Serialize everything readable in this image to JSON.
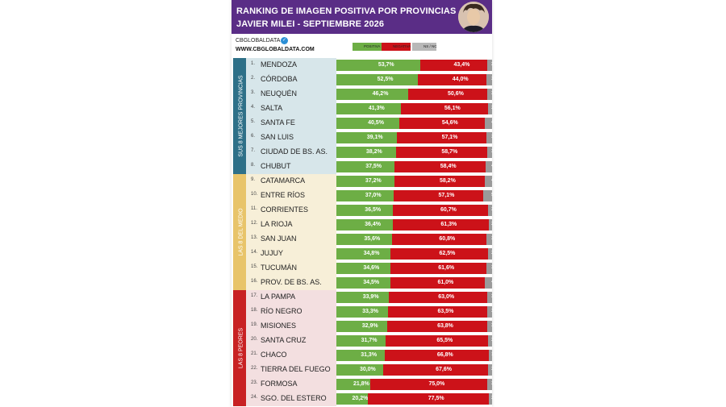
{
  "header": {
    "title_line1": "RANKING DE IMAGEN POSITIVA POR PROVINCIAS",
    "title_line2": "JAVIER MILEI - SEPTIEMBRE 2026"
  },
  "brand": {
    "handle": "CBGLOBALDATA",
    "site": "WWW.CBGLOBALDATA.COM"
  },
  "colors": {
    "header": "#5a2d86",
    "positiva": "#6dae45",
    "negativa": "#cc1219",
    "ns_nc": "#9a9a9a",
    "group_top": "#2e7088",
    "group_mid": "#e8c46a",
    "group_bottom": "#c82123"
  },
  "legend": [
    "POSITIVA",
    "NEGATIVA",
    "NS / NC"
  ],
  "groups": [
    {
      "label": "SUS 8 MEJORES PROVINCIAS",
      "start": 0,
      "count": 8,
      "color": "#2e7088",
      "bg": "#d7e6ea"
    },
    {
      "label": "LAS 8 DEL MEDIO",
      "start": 8,
      "count": 8,
      "color": "#e8c46a",
      "bg": "#f7efd8"
    },
    {
      "label": "LAS 8 PEORES",
      "start": 16,
      "count": 8,
      "color": "#c82123",
      "bg": "#f3dfe0"
    }
  ],
  "chart_data": {
    "type": "bar",
    "orientation": "horizontal",
    "stacked": true,
    "title": "RANKING DE IMAGEN POSITIVA POR PROVINCIAS",
    "subtitle": "JAVIER MILEI - SEPTIEMBRE 2026",
    "categories": [
      "MENDOZA",
      "CÓRDOBA",
      "NEUQUÉN",
      "SALTA",
      "SANTA FE",
      "SAN LUIS",
      "CIUDAD DE BS. AS.",
      "CHUBUT",
      "CATAMARCA",
      "ENTRE RÍOS",
      "CORRIENTES",
      "LA RIOJA",
      "SAN JUAN",
      "JUJUY",
      "TUCUMÁN",
      "PROV. DE BS. AS.",
      "LA PAMPA",
      "RÍO NEGRO",
      "MISIONES",
      "SANTA CRUZ",
      "CHACO",
      "TIERRA DEL FUEGO",
      "FORMOSA",
      "SGO. DEL ESTERO"
    ],
    "ranks": [
      "1.",
      "2.",
      "3.",
      "4.",
      "5.",
      "6.",
      "7.",
      "8.",
      "9.",
      "10.",
      "11.",
      "12.",
      "13.",
      "14.",
      "15.",
      "16.",
      "17.",
      "18.",
      "19.",
      "20.",
      "21.",
      "22.",
      "23.",
      "24."
    ],
    "series": [
      {
        "name": "POSITIVA",
        "color": "#6dae45",
        "values": [
          53.7,
          52.5,
          46.2,
          41.3,
          40.5,
          39.1,
          38.2,
          37.5,
          37.2,
          37.0,
          36.5,
          36.4,
          35.6,
          34.8,
          34.6,
          34.5,
          33.9,
          33.3,
          32.9,
          31.7,
          31.3,
          30.0,
          21.8,
          20.2
        ],
        "labels": [
          "53,7%",
          "52,5%",
          "46,2%",
          "41,3%",
          "40,5%",
          "39,1%",
          "38,2%",
          "37,5%",
          "37,2%",
          "37,0%",
          "36,5%",
          "36,4%",
          "35,6%",
          "34,8%",
          "34,6%",
          "34,5%",
          "33,9%",
          "33,3%",
          "32,9%",
          "31,7%",
          "31,3%",
          "30,0%",
          "21,8%",
          "20,2%"
        ]
      },
      {
        "name": "NEGATIVA",
        "color": "#cc1219",
        "values": [
          43.4,
          44.0,
          50.6,
          56.1,
          54.6,
          57.1,
          58.7,
          58.4,
          58.2,
          57.1,
          60.7,
          61.3,
          60.8,
          62.5,
          61.6,
          61.0,
          63.0,
          63.5,
          63.8,
          65.5,
          66.8,
          67.6,
          75.0,
          77.5
        ],
        "labels": [
          "43,4%",
          "44,0%",
          "50,6%",
          "56,1%",
          "54,6%",
          "57,1%",
          "58,7%",
          "58,4%",
          "58,2%",
          "57,1%",
          "60,7%",
          "61,3%",
          "60,8%",
          "62,5%",
          "61,6%",
          "61,0%",
          "63,0%",
          "63,5%",
          "63,8%",
          "65,5%",
          "66,8%",
          "67,6%",
          "75,0%",
          "77,5%"
        ]
      },
      {
        "name": "NS / NC",
        "color": "#9a9a9a",
        "values": [
          2.9,
          3.5,
          3.2,
          2.6,
          4.9,
          3.8,
          3.1,
          4.1,
          4.6,
          5.9,
          2.8,
          2.3,
          3.6,
          2.7,
          3.8,
          4.5,
          3.1,
          3.2,
          3.3,
          2.8,
          1.9,
          2.4,
          3.2,
          2.3
        ],
        "labels": [
          "2,9",
          "3,5",
          "3,2",
          "2,6",
          "4,9",
          "3,8",
          "3,1",
          "4,1",
          "4,6",
          "5,9",
          "2,8",
          "2,3",
          "3,6",
          "2,7",
          "3,8",
          "4,5",
          "3,1",
          "3,2",
          "3,3",
          "2,8",
          "1,9",
          "2,4",
          "3,2",
          "2,3"
        ]
      }
    ],
    "xlim": [
      0,
      100
    ]
  }
}
